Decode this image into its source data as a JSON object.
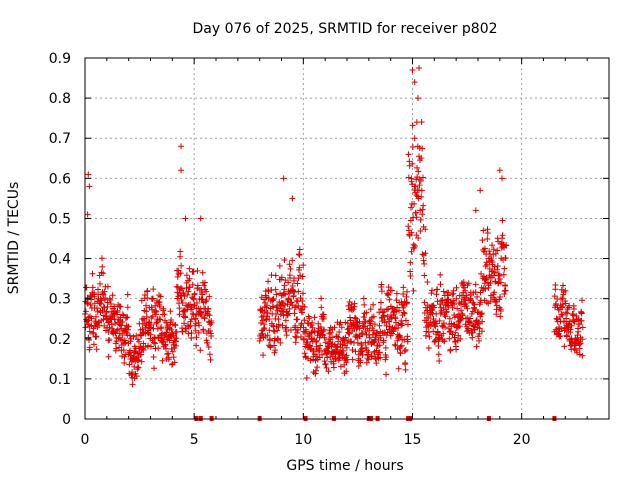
{
  "chart_data": {
    "type": "scatter",
    "title": "Day 076 of 2025, SRMTID for receiver p802",
    "xlabel": "GPS time / hours",
    "ylabel": "SRMTID / TECUs",
    "xlim": [
      0,
      24
    ],
    "ylim": [
      0,
      0.9
    ],
    "xticks": [
      0,
      5,
      10,
      15,
      20
    ],
    "xtick_labels": [
      "0",
      "5",
      "10",
      "15",
      "20"
    ],
    "yticks": [
      0,
      0.1,
      0.2,
      0.3,
      0.4,
      0.5,
      0.6,
      0.7,
      0.8,
      0.9
    ],
    "ytick_labels": [
      "0",
      "0.1",
      "0.2",
      "0.3",
      "0.4",
      "0.5",
      "0.6",
      "0.7",
      "0.8",
      "0.9"
    ],
    "grid": true,
    "marker": "+",
    "color": "#e00000",
    "series": [
      {
        "name": "SRMTID",
        "segments": [
          {
            "x_start": 0.0,
            "x_end": 1.0,
            "typical_min": 0.15,
            "typical_max": 0.42
          },
          {
            "x_start": 1.0,
            "x_end": 2.0,
            "typical_min": 0.12,
            "typical_max": 0.33
          },
          {
            "x_start": 2.0,
            "x_end": 2.6,
            "typical_min": 0.05,
            "typical_max": 0.25
          },
          {
            "x_start": 2.6,
            "x_end": 3.5,
            "typical_min": 0.12,
            "typical_max": 0.38
          },
          {
            "x_start": 3.5,
            "x_end": 4.2,
            "typical_min": 0.1,
            "typical_max": 0.3
          },
          {
            "x_start": 4.2,
            "x_end": 5.0,
            "typical_min": 0.15,
            "typical_max": 0.45
          },
          {
            "x_start": 5.0,
            "x_end": 5.8,
            "typical_min": 0.1,
            "typical_max": 0.4
          },
          {
            "x_start": 8.0,
            "x_end": 9.0,
            "typical_min": 0.12,
            "typical_max": 0.4
          },
          {
            "x_start": 9.0,
            "x_end": 10.0,
            "typical_min": 0.15,
            "typical_max": 0.45
          },
          {
            "x_start": 10.0,
            "x_end": 11.0,
            "typical_min": 0.08,
            "typical_max": 0.3
          },
          {
            "x_start": 11.0,
            "x_end": 12.0,
            "typical_min": 0.08,
            "typical_max": 0.25
          },
          {
            "x_start": 12.0,
            "x_end": 13.5,
            "typical_min": 0.1,
            "typical_max": 0.32
          },
          {
            "x_start": 13.5,
            "x_end": 14.8,
            "typical_min": 0.1,
            "typical_max": 0.38
          },
          {
            "x_start": 14.8,
            "x_end": 15.6,
            "typical_min": 0.2,
            "typical_max": 0.85
          },
          {
            "x_start": 15.6,
            "x_end": 17.0,
            "typical_min": 0.15,
            "typical_max": 0.38
          },
          {
            "x_start": 17.0,
            "x_end": 18.2,
            "typical_min": 0.13,
            "typical_max": 0.4
          },
          {
            "x_start": 18.2,
            "x_end": 19.3,
            "typical_min": 0.2,
            "typical_max": 0.55
          },
          {
            "x_start": 21.5,
            "x_end": 22.2,
            "typical_min": 0.15,
            "typical_max": 0.35
          },
          {
            "x_start": 22.2,
            "x_end": 22.8,
            "typical_min": 0.12,
            "typical_max": 0.32
          }
        ],
        "peaks": [
          {
            "x": 0.15,
            "y": 0.61
          },
          {
            "x": 0.2,
            "y": 0.58
          },
          {
            "x": 0.12,
            "y": 0.51
          },
          {
            "x": 4.4,
            "y": 0.68
          },
          {
            "x": 4.4,
            "y": 0.62
          },
          {
            "x": 4.6,
            "y": 0.5
          },
          {
            "x": 5.3,
            "y": 0.5
          },
          {
            "x": 9.1,
            "y": 0.6
          },
          {
            "x": 9.5,
            "y": 0.55
          },
          {
            "x": 15.0,
            "y": 0.87
          },
          {
            "x": 15.3,
            "y": 0.875
          },
          {
            "x": 15.1,
            "y": 0.84
          },
          {
            "x": 15.25,
            "y": 0.8
          },
          {
            "x": 15.2,
            "y": 0.74
          },
          {
            "x": 15.1,
            "y": 0.7
          },
          {
            "x": 14.95,
            "y": 0.6
          },
          {
            "x": 18.1,
            "y": 0.57
          },
          {
            "x": 17.9,
            "y": 0.52
          },
          {
            "x": 19.0,
            "y": 0.62
          },
          {
            "x": 19.1,
            "y": 0.6
          }
        ]
      }
    ],
    "zero_markers_x": [
      5.1,
      5.3,
      5.8,
      8.0,
      10.1,
      11.4,
      13.0,
      13.1,
      13.4,
      14.8,
      14.9,
      18.5,
      21.5
    ]
  }
}
